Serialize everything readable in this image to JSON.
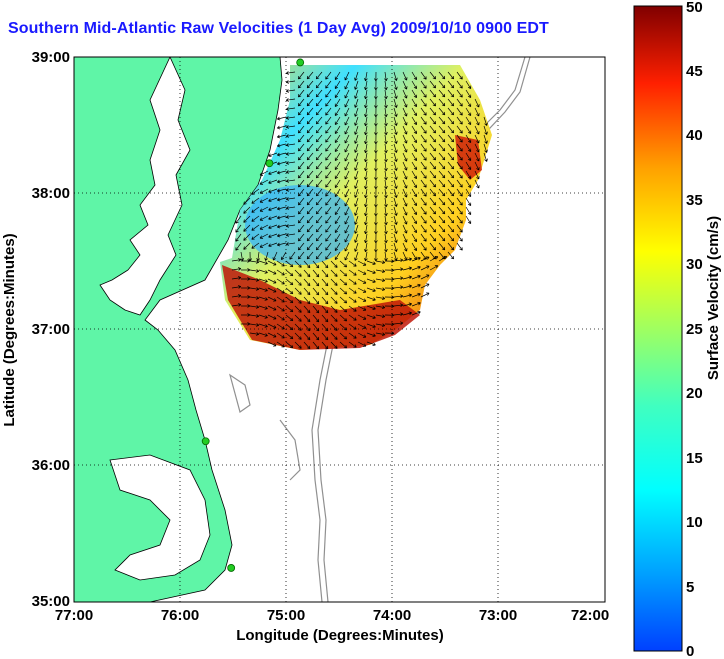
{
  "title": "Southern Mid-Atlantic Raw Velocities (1 Day Avg) 2009/10/10 0900 EDT",
  "map": {
    "xlabel": "Longitude (Degrees:Minutes)",
    "ylabel": "Latitude (Degrees:Minutes)",
    "lon_ticks": [
      "77:00",
      "76:00",
      "75:00",
      "74:00",
      "73:00",
      "72:00"
    ],
    "lat_ticks": [
      "39:00",
      "38:00",
      "37:00",
      "36:00",
      "35:00"
    ],
    "lon_range": [
      -77,
      -72
    ],
    "lat_range": [
      35,
      39
    ],
    "grid": true
  },
  "colorbar": {
    "label": "Surface Velocity (cm/s)",
    "ticks": [
      "0",
      "5",
      "10",
      "15",
      "20",
      "25",
      "30",
      "35",
      "40",
      "45",
      "50"
    ],
    "range": [
      0,
      50
    ]
  },
  "colors": {
    "land": "#5ff5a7",
    "title": "#1a1aff",
    "station": "#22cc22",
    "bathymetry": "#909090"
  },
  "stations": [
    {
      "lon": -74.87,
      "lat": 38.96
    },
    {
      "lon": -75.16,
      "lat": 38.22
    },
    {
      "lon": -75.76,
      "lat": 36.18
    },
    {
      "lon": -75.52,
      "lat": 35.25
    }
  ]
}
